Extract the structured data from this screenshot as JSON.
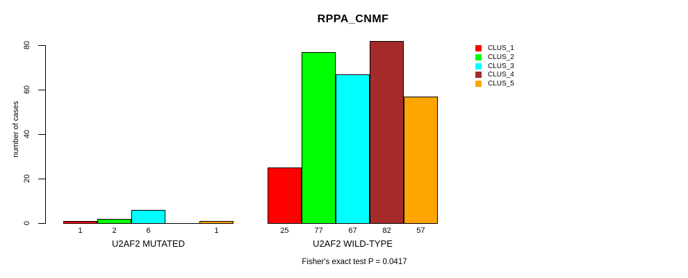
{
  "title": "RPPA_CNMF",
  "chart_data": {
    "type": "bar",
    "title": "RPPA_CNMF",
    "xlabel": "",
    "ylabel": "number of cases",
    "ylim": [
      0,
      80
    ],
    "yticks": [
      0,
      20,
      40,
      60,
      80
    ],
    "grid": false,
    "legend_position": "right",
    "series": [
      {
        "name": "CLUS_1",
        "color": "#FF0000"
      },
      {
        "name": "CLUS_2",
        "color": "#00FF00"
      },
      {
        "name": "CLUS_3",
        "color": "#00FFFF"
      },
      {
        "name": "CLUS_4",
        "color": "#A52A2A"
      },
      {
        "name": "CLUS_5",
        "color": "#FFA500"
      }
    ],
    "groups": [
      {
        "label": "U2AF2 MUTATED",
        "values": [
          1,
          2,
          6,
          0,
          1
        ],
        "bar_labels": [
          "1",
          "2",
          "6",
          "",
          "1"
        ]
      },
      {
        "label": "U2AF2 WILD-TYPE",
        "values": [
          25,
          77,
          67,
          82,
          57
        ],
        "bar_labels": [
          "25",
          "77",
          "67",
          "82",
          "57"
        ]
      }
    ],
    "annotation": "Fisher's exact test P = 0.0417"
  },
  "colors": {
    "background": "#FFFFFF",
    "axis": "#000000",
    "bar_border": "#000000",
    "text": "#000000"
  }
}
